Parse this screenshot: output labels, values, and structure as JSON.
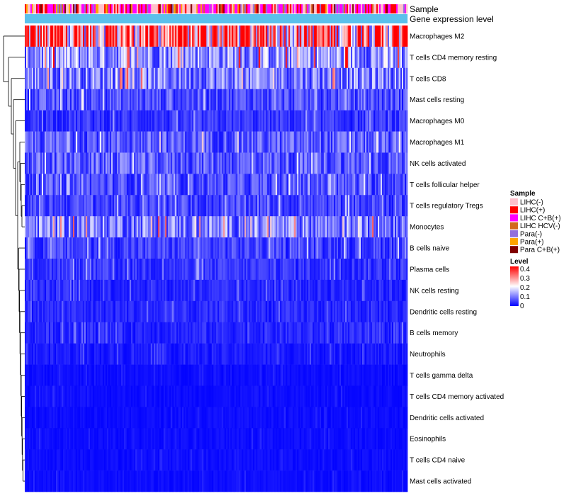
{
  "chart_data": {
    "type": "heatmap",
    "title": "",
    "row_labels": [
      "Macrophages M2",
      "T cells CD4 memory resting",
      "T cells CD8",
      "Mast cells resting",
      "Macrophages M0",
      "Macrophages M1",
      "NK cells activated",
      "T cells follicular helper",
      "T cells regulatory  Tregs",
      "Monocytes",
      "B cells naive",
      "Plasma cells",
      "NK cells resting",
      "Dendritic cells resting",
      "B cells memory",
      "Neutrophils",
      "T cells gamma delta",
      "T cells CD4 memory activated",
      "Dendritic cells activated",
      "Eosinophils",
      "T cells CD4 naive",
      "Mast cells activated"
    ],
    "row_mean_levels": [
      0.3,
      0.12,
      0.1,
      0.06,
      0.04,
      0.07,
      0.07,
      0.06,
      0.05,
      0.1,
      0.05,
      0.04,
      0.03,
      0.03,
      0.03,
      0.02,
      0.01,
      0.01,
      0.01,
      0.01,
      0.01,
      0.01
    ],
    "column_count": 270,
    "annotations": {
      "top_track_1": "Sample",
      "top_track_2": "Gene expression level"
    },
    "legend": {
      "sample_title": "Sample",
      "sample_entries": [
        {
          "label": "LIHC(-)",
          "color": "#ffc0cb"
        },
        {
          "label": "LIHC(+)",
          "color": "#ff0000"
        },
        {
          "label": "LIHC C+B(+)",
          "color": "#ff00ff"
        },
        {
          "label": "LIHC HCV(-)",
          "color": "#d2691e"
        },
        {
          "label": "Para(-)",
          "color": "#9370db"
        },
        {
          "label": "Para(+)",
          "color": "#ffa500"
        },
        {
          "label": "Para C+B(+)",
          "color": "#800000"
        }
      ],
      "level_title": "Level",
      "level_ticks": [
        "0.4",
        "0.3",
        "0.2",
        "0.1",
        "0"
      ],
      "level_range": [
        0,
        0.4
      ]
    },
    "colors": {
      "low": "#0000ff",
      "mid": "#ffffff",
      "high": "#ff0000",
      "expression_track": "#5bc0eb"
    }
  }
}
